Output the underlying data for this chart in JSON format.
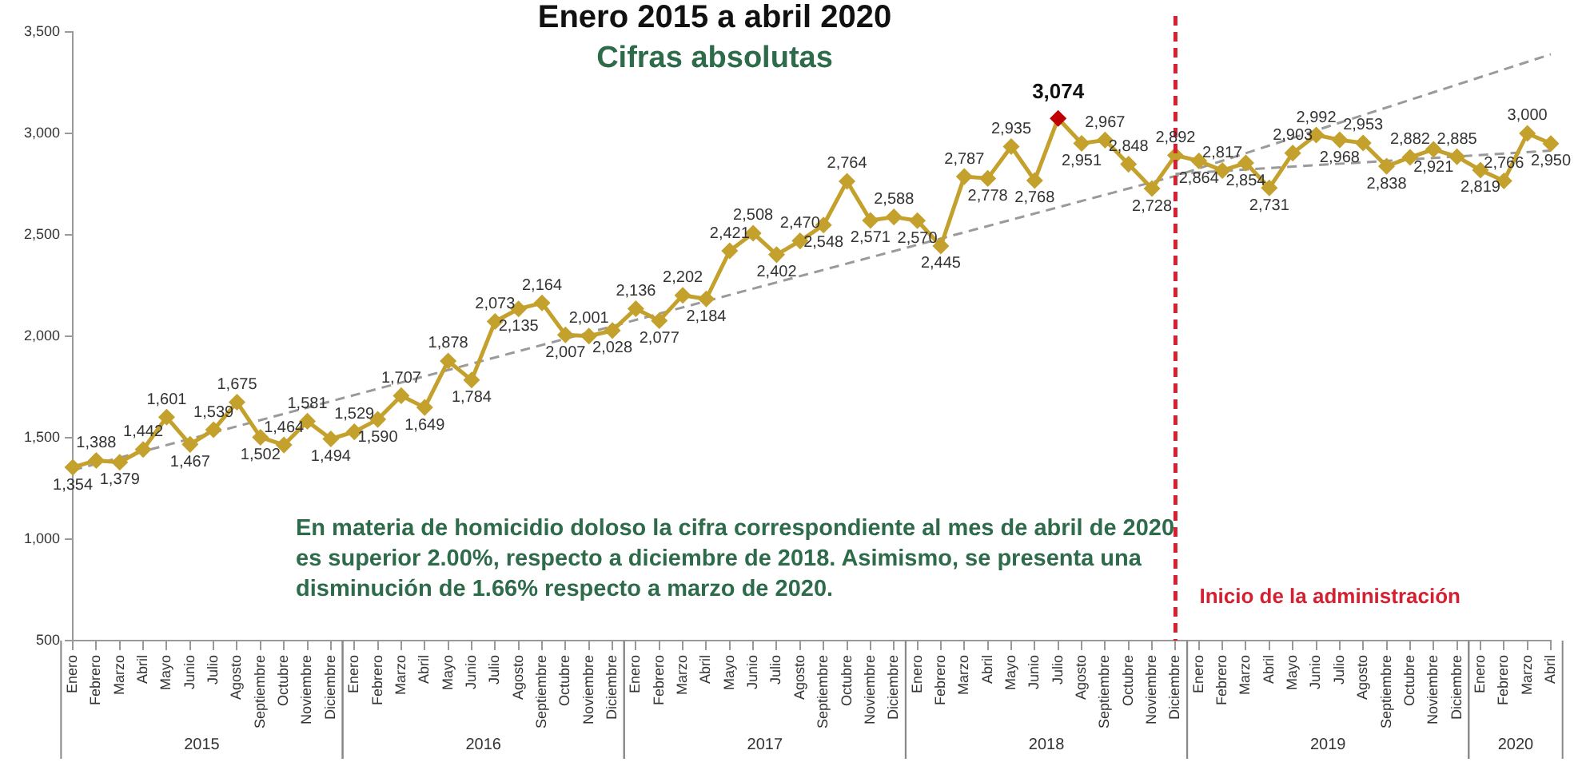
{
  "chart_data": {
    "type": "line",
    "title": "Enero 2015 a abril 2020",
    "subtitle": "Cifras absolutas",
    "annotations": [
      "En materia de homicidio doloso la cifra correspondiente al mes de abril de 2020 es superior 2.00%, respecto a diciembre de 2018. Asimismo, se presenta una disminución de 1.66% respecto a marzo de 2020.",
      "2015",
      "2016",
      "2017",
      "2018",
      "2019",
      "2020"
    ],
    "x": [
      "2015-01",
      "2015-02",
      "2015-03",
      "2015-04",
      "2015-05",
      "2015-06",
      "2015-07",
      "2015-08",
      "2015-09",
      "2015-10",
      "2015-11",
      "2015-12",
      "2016-01",
      "2016-02",
      "2016-03",
      "2016-04",
      "2016-05",
      "2016-06",
      "2016-07",
      "2016-08",
      "2016-09",
      "2016-10",
      "2016-11",
      "2016-12",
      "2017-01",
      "2017-02",
      "2017-03",
      "2017-04",
      "2017-05",
      "2017-06",
      "2017-07",
      "2017-08",
      "2017-09",
      "2017-10",
      "2017-11",
      "2017-12",
      "2018-01",
      "2018-02",
      "2018-03",
      "2018-04",
      "2018-05",
      "2018-06",
      "2018-07",
      "2018-08",
      "2018-09",
      "2018-10",
      "2018-11",
      "2018-12",
      "2019-01",
      "2019-02",
      "2019-03",
      "2019-04",
      "2019-05",
      "2019-06",
      "2019-07",
      "2019-08",
      "2019-09",
      "2019-10",
      "2019-11",
      "2019-12",
      "2020-01",
      "2020-02",
      "2020-03",
      "2020-04"
    ],
    "xlim": [
      "2015-01",
      "2020-04"
    ],
    "xticks": [
      {
        "value": "2015-01",
        "label": "Enero"
      },
      {
        "value": "2015-02",
        "label": "Febrero"
      },
      {
        "value": "2015-03",
        "label": "Marzo"
      },
      {
        "value": "2015-04",
        "label": "Abril"
      },
      {
        "value": "2015-05",
        "label": "Mayo"
      },
      {
        "value": "2015-06",
        "label": "Junio"
      },
      {
        "value": "2015-07",
        "label": "Julio"
      },
      {
        "value": "2015-08",
        "label": "Agosto"
      },
      {
        "value": "2015-09",
        "label": "Septiembre"
      },
      {
        "value": "2015-10",
        "label": "Octubre"
      },
      {
        "value": "2015-11",
        "label": "Noviembre"
      },
      {
        "value": "2015-12",
        "label": "Diciembre"
      },
      {
        "value": "2016-01",
        "label": "Enero"
      },
      {
        "value": "2016-02",
        "label": "Febrero"
      },
      {
        "value": "2016-03",
        "label": "Marzo"
      },
      {
        "value": "2016-04",
        "label": "Abril"
      },
      {
        "value": "2016-05",
        "label": "Mayo"
      },
      {
        "value": "2016-06",
        "label": "Junio"
      },
      {
        "value": "2016-07",
        "label": "Julio"
      },
      {
        "value": "2016-08",
        "label": "Agosto"
      },
      {
        "value": "2016-09",
        "label": "Septiembre"
      },
      {
        "value": "2016-10",
        "label": "Octubre"
      },
      {
        "value": "2016-11",
        "label": "Noviembre"
      },
      {
        "value": "2016-12",
        "label": "Diciembre"
      },
      {
        "value": "2017-01",
        "label": "Enero"
      },
      {
        "value": "2017-02",
        "label": "Febrero"
      },
      {
        "value": "2017-03",
        "label": "Marzo"
      },
      {
        "value": "2017-04",
        "label": "Abril"
      },
      {
        "value": "2017-05",
        "label": "Mayo"
      },
      {
        "value": "2017-06",
        "label": "Junio"
      },
      {
        "value": "2017-07",
        "label": "Julio"
      },
      {
        "value": "2017-08",
        "label": "Agosto"
      },
      {
        "value": "2017-09",
        "label": "Septiembre"
      },
      {
        "value": "2017-10",
        "label": "Octubre"
      },
      {
        "value": "2017-11",
        "label": "Noviembre"
      },
      {
        "value": "2017-12",
        "label": "Diciembre"
      },
      {
        "value": "2018-01",
        "label": "Enero"
      },
      {
        "value": "2018-02",
        "label": "Febrero"
      },
      {
        "value": "2018-03",
        "label": "Marzo"
      },
      {
        "value": "2018-04",
        "label": "Abril"
      },
      {
        "value": "2018-05",
        "label": "Mayo"
      },
      {
        "value": "2018-06",
        "label": "Junio"
      },
      {
        "value": "2018-07",
        "label": "Julio"
      },
      {
        "value": "2018-08",
        "label": "Agosto"
      },
      {
        "value": "2018-09",
        "label": "Septiembre"
      },
      {
        "value": "2018-10",
        "label": "Octubre"
      },
      {
        "value": "2018-11",
        "label": "Noviembre"
      },
      {
        "value": "2018-12",
        "label": "Diciembre"
      },
      {
        "value": "2019-01",
        "label": "Enero"
      },
      {
        "value": "2019-02",
        "label": "Febrero"
      },
      {
        "value": "2019-03",
        "label": "Marzo"
      },
      {
        "value": "2019-04",
        "label": "Abril"
      },
      {
        "value": "2019-05",
        "label": "Mayo"
      },
      {
        "value": "2019-06",
        "label": "Junio"
      },
      {
        "value": "2019-07",
        "label": "Julio"
      },
      {
        "value": "2019-08",
        "label": "Agosto"
      },
      {
        "value": "2019-09",
        "label": "Septiembre"
      },
      {
        "value": "2019-10",
        "label": "Octubre"
      },
      {
        "value": "2019-11",
        "label": "Noviembre"
      },
      {
        "value": "2019-12",
        "label": "Diciembre"
      },
      {
        "value": "2020-01",
        "label": "Enero"
      },
      {
        "value": "2020-02",
        "label": "Febrero"
      },
      {
        "value": "2020-03",
        "label": "Marzo"
      },
      {
        "value": "2020-04",
        "label": "Abril"
      }
    ],
    "ylim": [
      500,
      3500
    ],
    "yticks": [
      {
        "value": 500,
        "label": "500"
      },
      {
        "value": 1000,
        "label": "1,000"
      },
      {
        "value": 1500,
        "label": "1,500"
      },
      {
        "value": 2000,
        "label": "2,000"
      },
      {
        "value": 2500,
        "label": "2,500"
      },
      {
        "value": 3000,
        "label": "3,000"
      },
      {
        "value": 3500,
        "label": "3,500"
      }
    ],
    "grid": false,
    "legend": false,
    "series": [
      {
        "color": "#c4a12c",
        "marker": "diamond",
        "data_labels": true,
        "value_labels": [
          "1,354",
          "1,388",
          "1,379",
          "1,442",
          "1,601",
          "1,467",
          "1,539",
          "1,675",
          "1,502",
          "1,464",
          "1,581",
          "1,494",
          "1,529",
          "1,590",
          "1,707",
          "1,649",
          "1,878",
          "1,784",
          "2,073",
          "2,135",
          "2,164",
          "2,007",
          "2,001",
          "2,028",
          "2,136",
          "2,077",
          "2,202",
          "2,184",
          "2,421",
          "2,508",
          "2,402",
          "2,470",
          "2,548",
          "2,764",
          "2,571",
          "2,588",
          "2,570",
          "2,445",
          "2,787",
          "2,778",
          "2,935",
          "2,768",
          "3,074",
          "2,951",
          "2,967",
          "2,848",
          "2,728",
          "2,892",
          "2,864",
          "2,817",
          "2,854",
          "2,731",
          "2,903",
          "2,992",
          "2,968",
          "2,953",
          "2,838",
          "2,882",
          "2,921",
          "2,885",
          "2,819",
          "2,766",
          "3,000",
          "2,950"
        ],
        "colors": [
          "#c4a12c",
          "#c4a12c",
          "#c4a12c",
          "#c4a12c",
          "#c4a12c",
          "#c4a12c",
          "#c4a12c",
          "#c4a12c",
          "#c4a12c",
          "#c4a12c",
          "#c4a12c",
          "#c4a12c",
          "#c4a12c",
          "#c4a12c",
          "#c4a12c",
          "#c4a12c",
          "#c4a12c",
          "#c4a12c",
          "#c4a12c",
          "#c4a12c",
          "#c4a12c",
          "#c4a12c",
          "#c4a12c",
          "#c4a12c",
          "#c4a12c",
          "#c4a12c",
          "#c4a12c",
          "#c4a12c",
          "#c4a12c",
          "#c4a12c",
          "#c4a12c",
          "#c4a12c",
          "#c4a12c",
          "#c4a12c",
          "#c4a12c",
          "#c4a12c",
          "#c4a12c",
          "#c4a12c",
          "#c4a12c",
          "#c4a12c",
          "#c4a12c",
          "#c4a12c",
          "#c00000",
          "#c4a12c",
          "#c4a12c",
          "#c4a12c",
          "#c4a12c",
          "#c4a12c",
          "#c4a12c",
          "#c4a12c",
          "#c4a12c",
          "#c4a12c",
          "#c4a12c",
          "#c4a12c",
          "#c4a12c",
          "#c4a12c",
          "#c4a12c",
          "#c4a12c",
          "#c4a12c",
          "#c4a12c",
          "#c4a12c",
          "#c4a12c",
          "#c4a12c",
          "#c4a12c"
        ],
        "values": [
          1354,
          1388,
          1379,
          1442,
          1601,
          1467,
          1539,
          1675,
          1502,
          1464,
          1581,
          1494,
          1529,
          1590,
          1707,
          1649,
          1878,
          1784,
          2073,
          2135,
          2164,
          2007,
          2001,
          2028,
          2136,
          2077,
          2202,
          2184,
          2421,
          2508,
          2402,
          2470,
          2548,
          2764,
          2571,
          2588,
          2570,
          2445,
          2787,
          2778,
          2935,
          2768,
          3074,
          2951,
          2967,
          2848,
          2728,
          2892,
          2864,
          2817,
          2854,
          2731,
          2903,
          2992,
          2968,
          2953,
          2838,
          2882,
          2921,
          2885,
          2819,
          2766,
          3000,
          2950
        ]
      },
      {
        "type": "line",
        "color": "#9a9a9a",
        "marker": "none",
        "line_style": "dashed",
        "x": [
          "2015-01",
          "2018-12",
          "2020-04"
        ],
        "values": [
          1340,
          2790,
          3390
        ]
      },
      {
        "type": "line",
        "color": "#9a9a9a",
        "marker": "none",
        "line_style": "dashed",
        "x": [
          "2018-12",
          "2020-04"
        ],
        "values": [
          2800,
          2915
        ]
      }
    ],
    "ref_lines": [
      {
        "axis": "x",
        "value": "2018-12",
        "label": "Inicio de la administración",
        "color": "#d42030",
        "line_style": "dashed"
      }
    ]
  }
}
